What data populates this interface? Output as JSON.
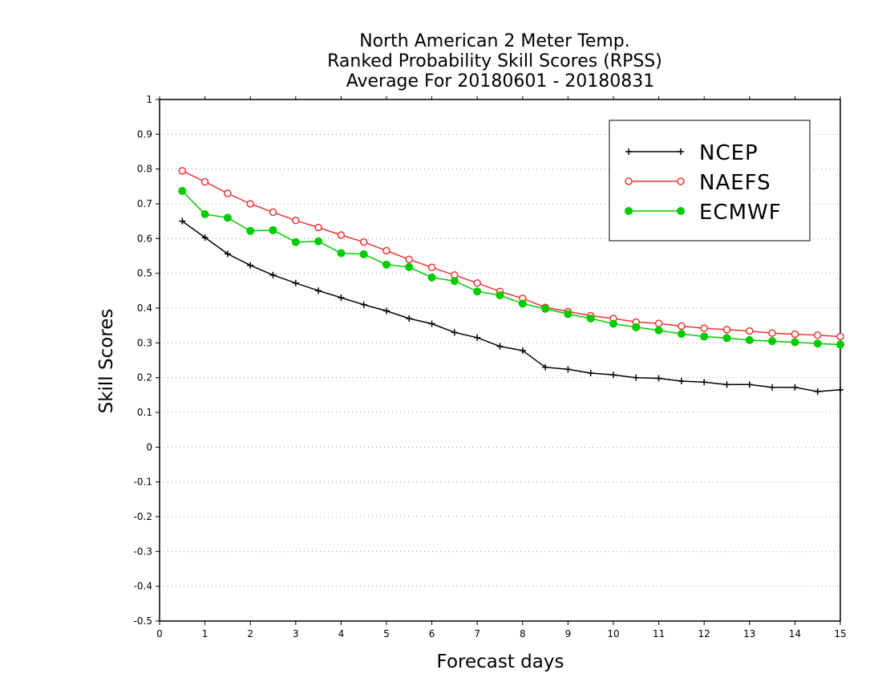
{
  "chart_data": {
    "type": "line",
    "title_lines": [
      "North American 2 Meter Temp.",
      "Ranked Probability Skill Scores (RPSS)",
      "Average For 20180601 - 20180831"
    ],
    "xlabel": "Forecast days",
    "ylabel": "Skill Scores",
    "xlim": [
      0,
      15
    ],
    "ylim": [
      -0.5,
      1
    ],
    "xticks": [
      "0",
      "1",
      "2",
      "3",
      "4",
      "5",
      "6",
      "7",
      "8",
      "9",
      "10",
      "11",
      "12",
      "13",
      "14",
      "15"
    ],
    "yticks": [
      "1",
      "0.9",
      "0.8",
      "0.7",
      "0.6",
      "0.5",
      "0.4",
      "0.3",
      "0.2",
      "0.1",
      "0",
      "-0.1",
      "-0.2",
      "-0.3",
      "-0.4",
      "-0.5"
    ],
    "grid": true,
    "legend_position": "top-right",
    "x": [
      0.5,
      1,
      1.5,
      2,
      2.5,
      3,
      3.5,
      4,
      4.5,
      5,
      5.5,
      6,
      6.5,
      7,
      7.5,
      8,
      8.5,
      9,
      9.5,
      10,
      10.5,
      11,
      11.5,
      12,
      12.5,
      13,
      13.5,
      14,
      14.5,
      15
    ],
    "series": [
      {
        "name": "NCEP",
        "color": "#000000",
        "marker": "plus",
        "values": [
          0.65,
          0.603,
          0.556,
          0.523,
          0.495,
          0.472,
          0.45,
          0.43,
          0.41,
          0.392,
          0.37,
          0.355,
          0.33,
          0.315,
          0.29,
          0.278,
          0.23,
          0.224,
          0.213,
          0.208,
          0.2,
          0.198,
          0.19,
          0.187,
          0.18,
          0.18,
          0.172,
          0.172,
          0.16,
          0.165
        ]
      },
      {
        "name": "NAEFS",
        "color": "#ee3333",
        "marker": "open-circle",
        "values": [
          0.795,
          0.763,
          0.73,
          0.7,
          0.676,
          0.652,
          0.632,
          0.61,
          0.59,
          0.565,
          0.54,
          0.517,
          0.495,
          0.472,
          0.448,
          0.428,
          0.402,
          0.39,
          0.378,
          0.37,
          0.36,
          0.356,
          0.348,
          0.342,
          0.338,
          0.334,
          0.328,
          0.325,
          0.322,
          0.318
        ]
      },
      {
        "name": "ECMWF",
        "color": "#00cc00",
        "marker": "filled-circle",
        "values": [
          0.737,
          0.67,
          0.66,
          0.622,
          0.624,
          0.59,
          0.592,
          0.558,
          0.555,
          0.525,
          0.518,
          0.488,
          0.478,
          0.448,
          0.437,
          0.413,
          0.398,
          0.383,
          0.37,
          0.355,
          0.345,
          0.336,
          0.326,
          0.318,
          0.314,
          0.308,
          0.305,
          0.302,
          0.298,
          0.295
        ]
      }
    ]
  }
}
